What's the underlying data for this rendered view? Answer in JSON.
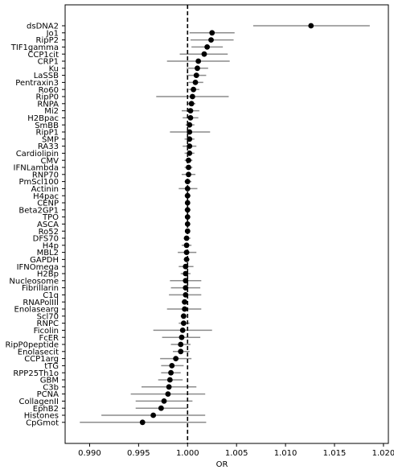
{
  "chart_data": {
    "type": "forest",
    "xlabel": "OR",
    "ylabel": "",
    "title": "",
    "xlim": [
      0.9875,
      1.0205
    ],
    "x_ticks": [
      0.99,
      0.995,
      1.0,
      1.005,
      1.01,
      1.015,
      1.02
    ],
    "x_tick_labels": [
      "0.990",
      "0.995",
      "1.000",
      "1.005",
      "1.010",
      "1.015",
      "1.020"
    ],
    "reference_line": 1.0,
    "grid": false,
    "colors": {
      "point": "#000000",
      "ci": "#8c8c8c",
      "reference": "#000000"
    },
    "rows": [
      {
        "label": "dsDNA2",
        "or": 1.0126,
        "lo": 1.0067,
        "hi": 1.0186
      },
      {
        "label": "Jo1",
        "or": 1.0025,
        "lo": 1.0002,
        "hi": 1.0048
      },
      {
        "label": "RipP2",
        "or": 1.0024,
        "lo": 1.0003,
        "hi": 1.0047
      },
      {
        "label": "TIF1gamma",
        "or": 1.002,
        "lo": 1.0004,
        "hi": 1.0036
      },
      {
        "label": "CCP1cit",
        "or": 1.0017,
        "lo": 0.9992,
        "hi": 1.0041
      },
      {
        "label": "CRP1",
        "or": 1.0011,
        "lo": 0.9979,
        "hi": 1.0043
      },
      {
        "label": "Ku",
        "or": 1.001,
        "lo": 0.9999,
        "hi": 1.0021
      },
      {
        "label": "LaSSB",
        "or": 1.0009,
        "lo": 0.9999,
        "hi": 1.0019
      },
      {
        "label": "Pentraxin3",
        "or": 1.0008,
        "lo": 1.0001,
        "hi": 1.0016
      },
      {
        "label": "Ro60",
        "or": 1.0006,
        "lo": 1.0001,
        "hi": 1.0012
      },
      {
        "label": "RipP0",
        "or": 1.0005,
        "lo": 0.9968,
        "hi": 1.0042
      },
      {
        "label": "RNPA",
        "or": 1.0004,
        "lo": 1.0,
        "hi": 1.0008
      },
      {
        "label": "Mi2",
        "or": 1.0003,
        "lo": 0.9994,
        "hi": 1.0012
      },
      {
        "label": "H2Bpac",
        "or": 1.0003,
        "lo": 0.9995,
        "hi": 1.0011
      },
      {
        "label": "SmBB",
        "or": 1.0002,
        "lo": 0.9998,
        "hi": 1.0007
      },
      {
        "label": "RipP1",
        "or": 1.0002,
        "lo": 0.9982,
        "hi": 1.0023
      },
      {
        "label": "SMP",
        "or": 1.0002,
        "lo": 0.9997,
        "hi": 1.0007
      },
      {
        "label": "RA33",
        "or": 1.0002,
        "lo": 0.9995,
        "hi": 1.0009
      },
      {
        "label": "Cardiolipin",
        "or": 1.0002,
        "lo": 0.9997,
        "hi": 1.0007
      },
      {
        "label": "CMV",
        "or": 1.0001,
        "lo": 0.9997,
        "hi": 1.0005
      },
      {
        "label": "IFNLambda",
        "or": 1.0001,
        "lo": 0.9997,
        "hi": 1.0005
      },
      {
        "label": "RNP70",
        "or": 1.0001,
        "lo": 0.9994,
        "hi": 1.0008
      },
      {
        "label": "PmScl100",
        "or": 1.0,
        "lo": 0.9997,
        "hi": 1.0004
      },
      {
        "label": "Actinin",
        "or": 1.0,
        "lo": 0.9991,
        "hi": 1.001
      },
      {
        "label": "H4pac",
        "or": 1.0,
        "lo": 0.9997,
        "hi": 1.0003
      },
      {
        "label": "CENP",
        "or": 1.0,
        "lo": 0.9998,
        "hi": 1.0002
      },
      {
        "label": "Beta2GP1",
        "or": 1.0,
        "lo": 0.9997,
        "hi": 1.0003
      },
      {
        "label": "TPO",
        "or": 1.0,
        "lo": 0.9998,
        "hi": 1.0002
      },
      {
        "label": "ASCA",
        "or": 1.0,
        "lo": 0.9998,
        "hi": 1.0002
      },
      {
        "label": "Ro52",
        "or": 1.0,
        "lo": 0.9998,
        "hi": 1.0002
      },
      {
        "label": "DFS70",
        "or": 0.9999,
        "lo": 0.9996,
        "hi": 1.0003
      },
      {
        "label": "H4p",
        "or": 0.9999,
        "lo": 0.9994,
        "hi": 1.0004
      },
      {
        "label": "MBL2",
        "or": 0.9999,
        "lo": 0.999,
        "hi": 1.0009
      },
      {
        "label": "GAPDH",
        "or": 0.9999,
        "lo": 0.9996,
        "hi": 1.0002
      },
      {
        "label": "IFNOmega",
        "or": 0.9998,
        "lo": 0.9991,
        "hi": 1.0006
      },
      {
        "label": "H2Bp",
        "or": 0.9998,
        "lo": 0.9993,
        "hi": 1.0003
      },
      {
        "label": "Nucleosome",
        "or": 0.9998,
        "lo": 0.9982,
        "hi": 1.0014
      },
      {
        "label": "Fibrillarin",
        "or": 0.9998,
        "lo": 0.9983,
        "hi": 1.0013
      },
      {
        "label": "C1q",
        "or": 0.9998,
        "lo": 0.9981,
        "hi": 1.0014
      },
      {
        "label": "RNAPolIII",
        "or": 0.9997,
        "lo": 0.9994,
        "hi": 1.0
      },
      {
        "label": "Enolasearg",
        "or": 0.9997,
        "lo": 0.9979,
        "hi": 1.0014
      },
      {
        "label": "Scl70",
        "or": 0.9996,
        "lo": 0.9993,
        "hi": 0.9999
      },
      {
        "label": "RNPC",
        "or": 0.9996,
        "lo": 0.9991,
        "hi": 1.0002
      },
      {
        "label": "Ficolin",
        "or": 0.9995,
        "lo": 0.9965,
        "hi": 1.0025
      },
      {
        "label": "FcER",
        "or": 0.9994,
        "lo": 0.9974,
        "hi": 1.0013
      },
      {
        "label": "RipP0peptide",
        "or": 0.9993,
        "lo": 0.9983,
        "hi": 1.0003
      },
      {
        "label": "Enolasecit",
        "or": 0.9993,
        "lo": 0.9985,
        "hi": 1.0002
      },
      {
        "label": "CCP1arg",
        "or": 0.9988,
        "lo": 0.9972,
        "hi": 1.0004
      },
      {
        "label": "tTG",
        "or": 0.9984,
        "lo": 0.9973,
        "hi": 0.9996
      },
      {
        "label": "RPP25Th1o",
        "or": 0.9983,
        "lo": 0.9973,
        "hi": 0.9993
      },
      {
        "label": "GBM",
        "or": 0.9982,
        "lo": 0.997,
        "hi": 0.9995
      },
      {
        "label": "C3b",
        "or": 0.9981,
        "lo": 0.9953,
        "hi": 1.0009
      },
      {
        "label": "PCNA",
        "or": 0.998,
        "lo": 0.9942,
        "hi": 1.0018
      },
      {
        "label": "CollagenII",
        "or": 0.9976,
        "lo": 0.9947,
        "hi": 1.0005
      },
      {
        "label": "EphB2",
        "or": 0.9973,
        "lo": 0.9947,
        "hi": 1.0
      },
      {
        "label": "Histones",
        "or": 0.9965,
        "lo": 0.9912,
        "hi": 1.0018
      },
      {
        "label": "CpGmot",
        "or": 0.9954,
        "lo": 0.989,
        "hi": 1.0019
      }
    ]
  }
}
